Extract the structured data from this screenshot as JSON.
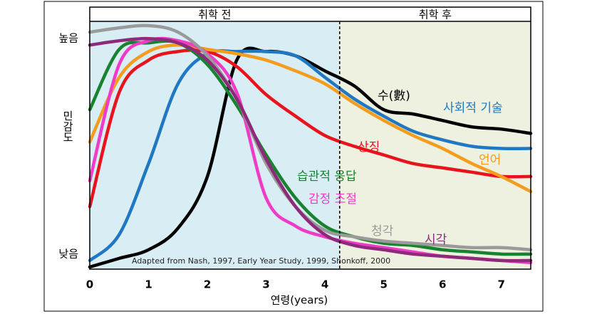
{
  "chart_data": {
    "type": "line",
    "ylabel": "민감도",
    "xlabel": "연령(years)",
    "note": "Adapted from Nash, 1997, Early Year Study, 1999, Shonkoff, 2000",
    "regions": [
      {
        "label": "취학 전",
        "from": 0,
        "to": 4.25,
        "color": "#d9edf4"
      },
      {
        "label": "취학 후",
        "from": 4.25,
        "to": 7.5,
        "color": "#eef0e0"
      }
    ],
    "x": [
      0,
      0.5,
      1,
      1.5,
      2,
      2.5,
      3,
      3.5,
      4,
      4.5,
      5,
      5.5,
      6,
      6.5,
      7,
      7.5
    ],
    "xlim": [
      0,
      7.5
    ],
    "xticks": [
      0,
      1,
      2,
      3,
      4,
      5,
      6,
      7
    ],
    "ylim": [
      -0.07,
      1.08
    ],
    "yticks": [
      {
        "value": 1,
        "label": "높음"
      },
      {
        "value": 0,
        "label": "낮음"
      }
    ],
    "series": [
      {
        "name": "수(數)",
        "color": "#000000",
        "values": [
          -0.06,
          -0.02,
          0.02,
          0.12,
          0.36,
          0.9,
          0.94,
          0.92,
          0.85,
          0.78,
          0.67,
          0.65,
          0.62,
          0.59,
          0.58,
          0.56
        ]
      },
      {
        "name": "사회적 기술",
        "color": "#1f78c1",
        "values": [
          -0.03,
          0.09,
          0.42,
          0.79,
          0.93,
          0.94,
          0.94,
          0.92,
          0.82,
          0.72,
          0.64,
          0.57,
          0.53,
          0.5,
          0.49,
          0.49
        ]
      },
      {
        "name": "상징",
        "color": "#e8131d",
        "values": [
          0.22,
          0.75,
          0.9,
          0.94,
          0.94,
          0.87,
          0.74,
          0.64,
          0.55,
          0.5,
          0.46,
          0.42,
          0.4,
          0.38,
          0.36,
          0.36
        ]
      },
      {
        "name": "언어",
        "color": "#f39c1e",
        "values": [
          0.52,
          0.82,
          0.94,
          0.97,
          0.95,
          0.93,
          0.9,
          0.85,
          0.79,
          0.7,
          0.62,
          0.55,
          0.49,
          0.42,
          0.36,
          0.29
        ]
      },
      {
        "name": "습관적 응답",
        "color": "#17822f",
        "values": [
          0.67,
          0.95,
          0.98,
          0.98,
          0.88,
          0.69,
          0.46,
          0.26,
          0.13,
          0.08,
          0.05,
          0.04,
          0.02,
          0.01,
          0.0,
          0.0
        ]
      },
      {
        "name": "감정 조절",
        "color": "#ee3bc8",
        "values": [
          0.34,
          0.88,
          0.99,
          0.99,
          0.93,
          0.75,
          0.26,
          0.13,
          0.08,
          0.05,
          0.03,
          0.01,
          -0.01,
          -0.02,
          -0.03,
          -0.04
        ]
      },
      {
        "name": "청각",
        "color": "#9a9a9a",
        "values": [
          1.03,
          1.05,
          1.06,
          1.03,
          0.92,
          0.72,
          0.42,
          0.22,
          0.11,
          0.08,
          0.06,
          0.05,
          0.04,
          0.03,
          0.03,
          0.02
        ]
      },
      {
        "name": "시각",
        "color": "#8e2a7a",
        "values": [
          0.97,
          0.99,
          1.0,
          0.98,
          0.9,
          0.72,
          0.44,
          0.22,
          0.09,
          0.04,
          0.02,
          0.0,
          -0.01,
          -0.02,
          -0.03,
          -0.03
        ]
      }
    ]
  }
}
